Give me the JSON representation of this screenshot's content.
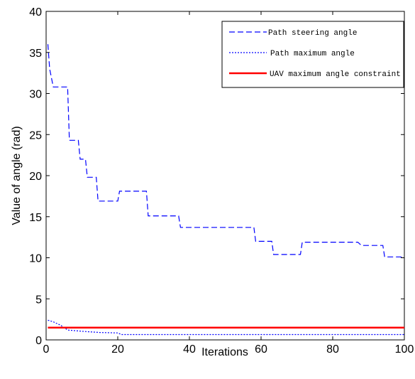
{
  "chart_data": {
    "type": "line",
    "xlabel": "Iterations",
    "ylabel": "Value of angle  (rad)",
    "xlim": [
      0,
      100
    ],
    "ylim": [
      0,
      40
    ],
    "x_ticks": [
      "0",
      "20",
      "40",
      "60",
      "80",
      "100"
    ],
    "y_ticks": [
      "0",
      "5",
      "10",
      "15",
      "20",
      "25",
      "30",
      "35",
      "40"
    ],
    "grid": false,
    "legend_position": "top-right",
    "series": [
      {
        "name": "Path steering angle",
        "color": "#0000ff",
        "style": "dashed",
        "x": [
          0.5,
          1,
          2,
          6,
          6.5,
          9,
          9.5,
          11,
          11.5,
          14,
          14.5,
          20,
          20.5,
          28,
          28.5,
          37,
          37.5,
          58,
          58.5,
          63,
          63.5,
          67,
          68,
          71,
          71.5,
          87,
          88,
          94,
          94.5,
          100
        ],
        "y": [
          36,
          33,
          30.8,
          30.8,
          24.3,
          24.3,
          22,
          22,
          19.8,
          19.8,
          16.9,
          16.9,
          18.1,
          18.1,
          15.1,
          15.1,
          13.7,
          13.7,
          12,
          12,
          10.4,
          10.4,
          10.4,
          10.4,
          11.9,
          11.9,
          11.5,
          11.5,
          10.1,
          10.1
        ]
      },
      {
        "name": "Path maximum angle",
        "color": "#0000ff",
        "style": "dotted",
        "x": [
          0.5,
          2,
          4,
          6,
          10,
          15,
          20,
          21,
          100
        ],
        "y": [
          2.4,
          2.2,
          1.8,
          1.2,
          1.05,
          0.9,
          0.85,
          0.65,
          0.65
        ]
      },
      {
        "name": "UAV maximum angle constraint",
        "color": "#ff0000",
        "style": "solid",
        "x": [
          0.5,
          100
        ],
        "y": [
          1.5,
          1.5
        ]
      }
    ]
  }
}
